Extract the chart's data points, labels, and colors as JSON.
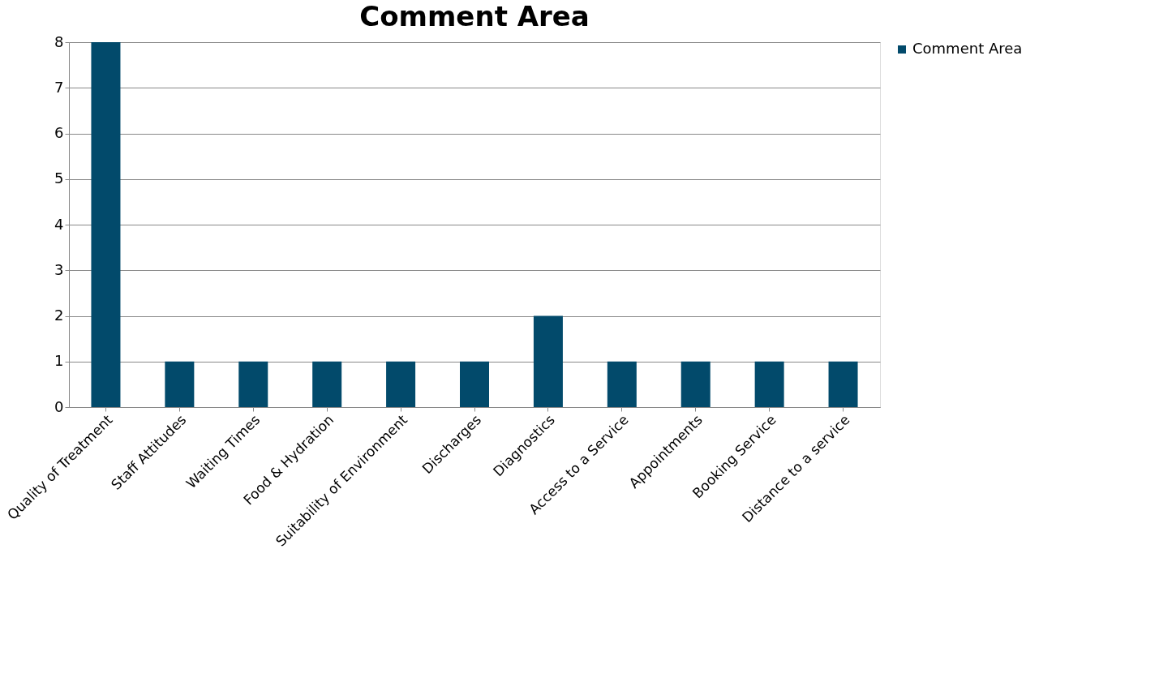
{
  "chart_data": {
    "type": "bar",
    "title": "Comment Area",
    "categories": [
      "Quality of Treatment",
      "Staff Attitudes",
      "Waiting Times",
      "Food & Hydration",
      "Suitability of Environment",
      "Discharges",
      "Diagnostics",
      "Access to a Service",
      "Appointments",
      "Booking Service",
      "Distance to a service"
    ],
    "series": [
      {
        "name": "Comment Area",
        "color": "#024a6b",
        "values": [
          8,
          1,
          1,
          1,
          1,
          1,
          2,
          1,
          1,
          1,
          1
        ]
      }
    ],
    "ylim": [
      0,
      8
    ],
    "yticks": [
      0,
      1,
      2,
      3,
      4,
      5,
      6,
      7,
      8
    ],
    "grid": "y",
    "legend": "right"
  }
}
